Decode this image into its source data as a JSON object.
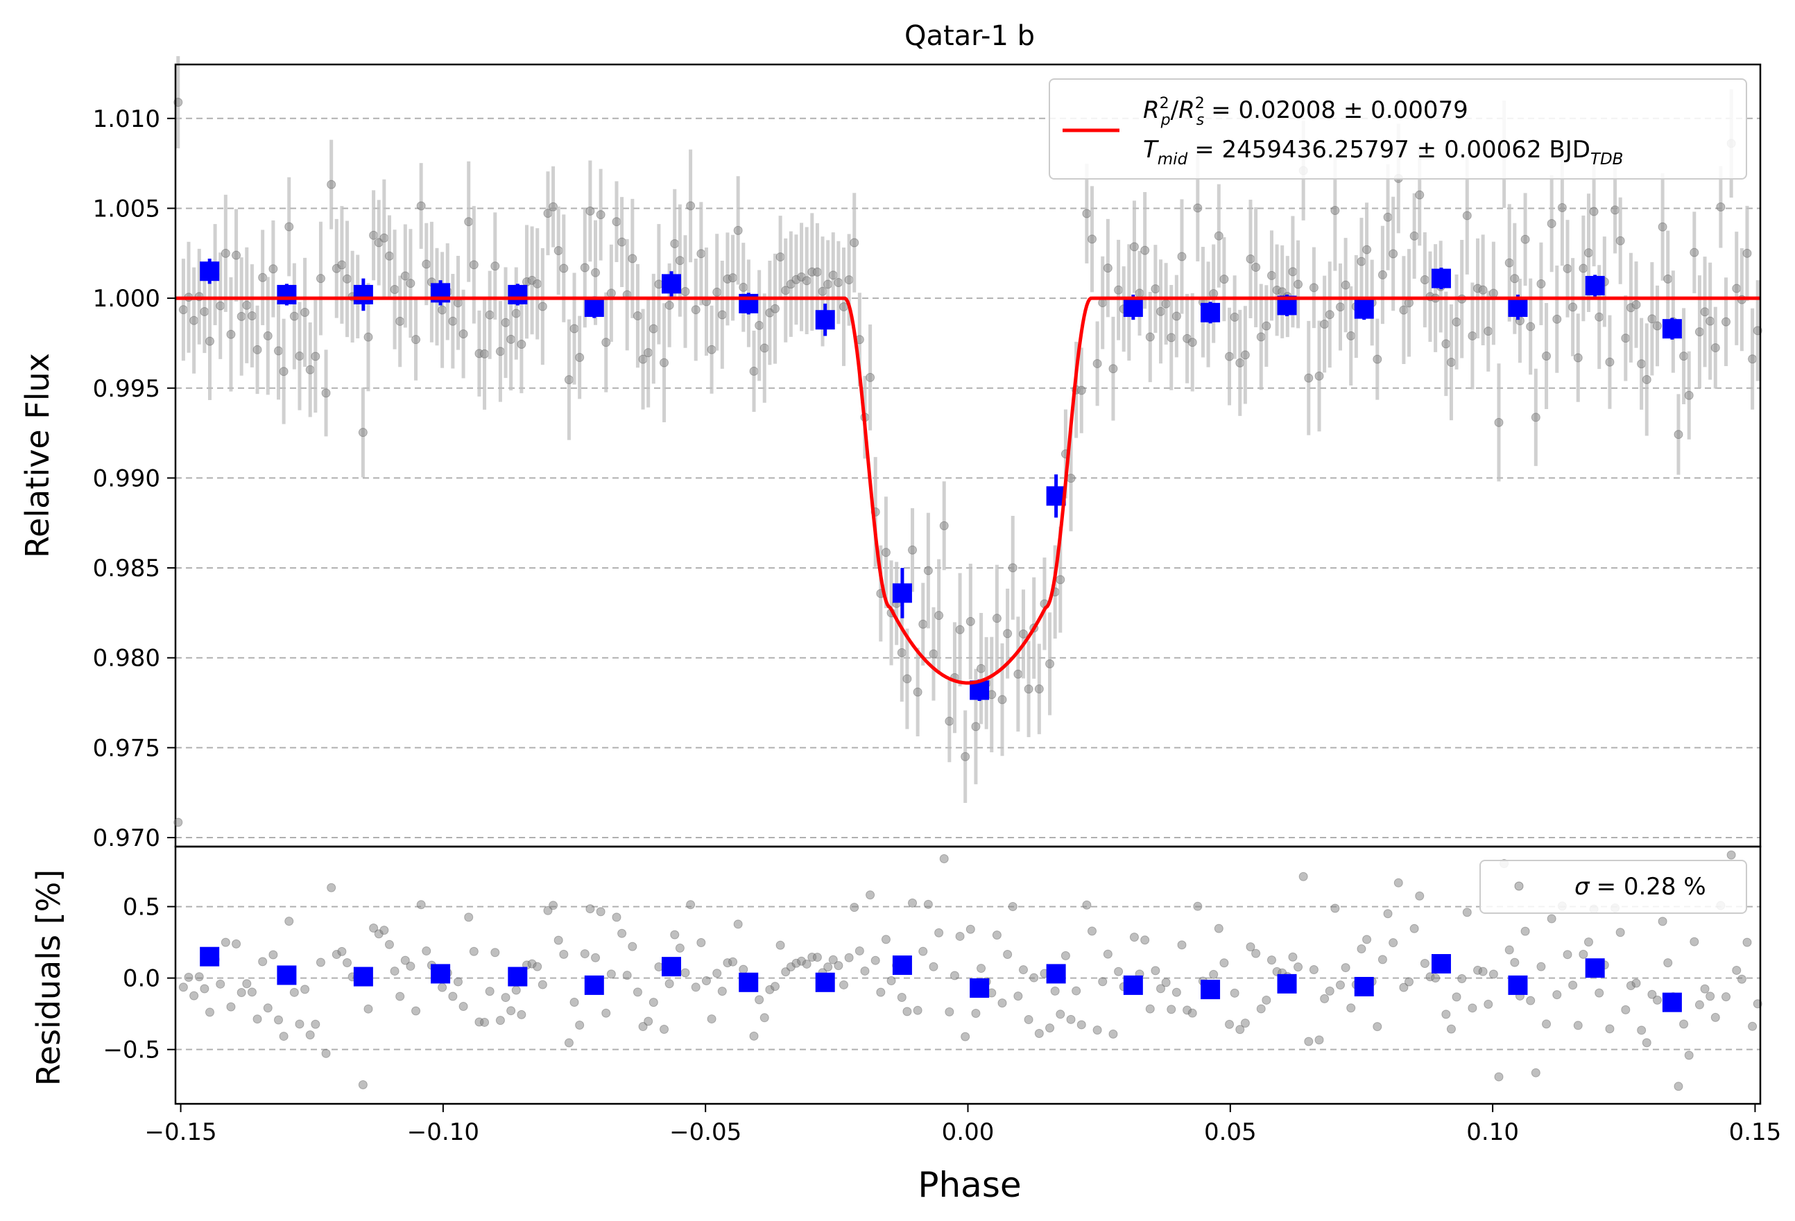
{
  "chart_data": [
    {
      "type": "scatter",
      "title": "Qatar-1 b",
      "xlabel": "",
      "ylabel": "Relative Flux",
      "xlim": [
        -0.151,
        0.151
      ],
      "ylim": [
        0.9695,
        1.013
      ],
      "grid": "horizontal dashed",
      "yticks": [
        0.97,
        0.975,
        0.98,
        0.985,
        0.99,
        0.995,
        1.0,
        1.005,
        1.01
      ],
      "ytick_labels": [
        "0.970",
        "0.975",
        "0.980",
        "0.985",
        "0.990",
        "0.995",
        "1.000",
        "1.005",
        "1.010"
      ],
      "legend": {
        "placement": "top-right",
        "line1_main": "R",
        "line1_text": "= 0.02008 ± 0.00079",
        "line2_main": "T",
        "line2_sub": "mid",
        "line2_text": "= 2459436.25797 ± 0.00062 BJD",
        "line2_unit_sub": "TDB"
      },
      "model": {
        "name": "transit model",
        "color": "#ff0000",
        "baseline": 1.0,
        "depth_min": 0.9786,
        "t14_half": 0.0235,
        "t23_half": 0.0148
      },
      "binned_color": "#0000ff",
      "raw_color": "#808080",
      "binned": [
        {
          "x": -0.1445,
          "y": 1.0015,
          "err": 0.0007
        },
        {
          "x": -0.1298,
          "y": 1.0002,
          "err": 0.0006
        },
        {
          "x": -0.1152,
          "y": 1.0002,
          "err": 0.0009
        },
        {
          "x": -0.1005,
          "y": 1.0003,
          "err": 0.0007
        },
        {
          "x": -0.0858,
          "y": 1.0002,
          "err": 0.0006
        },
        {
          "x": -0.0712,
          "y": 0.9995,
          "err": 0.0006
        },
        {
          "x": -0.0565,
          "y": 1.0008,
          "err": 0.0007
        },
        {
          "x": -0.0418,
          "y": 0.9997,
          "err": 0.0006
        },
        {
          "x": -0.0272,
          "y": 0.9988,
          "err": 0.0009
        },
        {
          "x": -0.0125,
          "y": 0.9836,
          "err": 0.0014
        },
        {
          "x": 0.0022,
          "y": 0.9782,
          "err": 0.0006
        },
        {
          "x": 0.0168,
          "y": 0.989,
          "err": 0.0012
        },
        {
          "x": 0.0315,
          "y": 0.9995,
          "err": 0.0007
        },
        {
          "x": 0.0462,
          "y": 0.9992,
          "err": 0.0006
        },
        {
          "x": 0.0608,
          "y": 0.9996,
          "err": 0.0006
        },
        {
          "x": 0.0755,
          "y": 0.9994,
          "err": 0.0006
        },
        {
          "x": 0.0902,
          "y": 1.0011,
          "err": 0.0006
        },
        {
          "x": 0.1048,
          "y": 0.9995,
          "err": 0.0007
        },
        {
          "x": 0.1195,
          "y": 1.0007,
          "err": 0.0006
        },
        {
          "x": 0.1342,
          "y": 0.9983,
          "err": 0.0006
        }
      ],
      "raw_point_count": 300,
      "raw_error": 0.0028
    },
    {
      "type": "scatter",
      "xlabel": "Phase",
      "ylabel": "Residuals [%]",
      "xlim": [
        -0.151,
        0.151
      ],
      "ylim": [
        -0.88,
        0.92
      ],
      "grid": "horizontal dashed",
      "xticks": [
        -0.15,
        -0.1,
        -0.05,
        0.0,
        0.05,
        0.1,
        0.15
      ],
      "xtick_labels": [
        "−0.15",
        "−0.10",
        "−0.05",
        "0.00",
        "0.05",
        "0.10",
        "0.15"
      ],
      "yticks": [
        -0.5,
        0.0,
        0.5
      ],
      "ytick_labels": [
        "−0.5",
        "0.0",
        "0.5"
      ],
      "legend": {
        "placement": "top-right",
        "label": "= 0.28 %",
        "symbol": "σ"
      },
      "sigma_percent": 0.28,
      "binned_residuals": [
        0.15,
        0.02,
        0.01,
        0.03,
        0.01,
        -0.05,
        0.08,
        -0.03,
        -0.03,
        0.09,
        -0.07,
        0.03,
        -0.05,
        -0.08,
        -0.04,
        -0.06,
        0.1,
        -0.05,
        0.07,
        -0.17
      ]
    }
  ]
}
